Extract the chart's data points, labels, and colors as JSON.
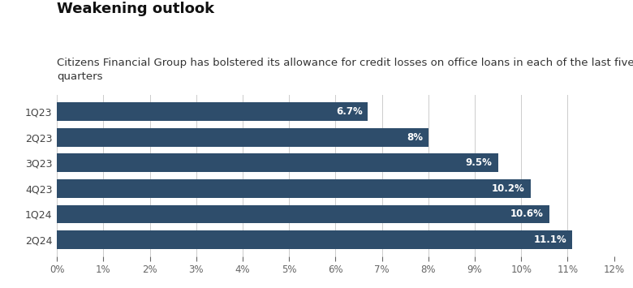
{
  "title": "Weakening outlook",
  "subtitle": "Citizens Financial Group has bolstered its allowance for credit losses on office loans in each of the last five\nquarters",
  "categories": [
    "1Q23",
    "2Q23",
    "3Q23",
    "4Q23",
    "1Q24",
    "2Q24"
  ],
  "values": [
    6.7,
    8.0,
    9.5,
    10.2,
    10.6,
    11.1
  ],
  "labels": [
    "6.7%",
    "8%",
    "9.5%",
    "10.2%",
    "10.6%",
    "11.1%"
  ],
  "bar_color": "#2E4D6B",
  "label_color": "#ffffff",
  "background_color": "#ffffff",
  "grid_color": "#cccccc",
  "ytick_color": "#444444",
  "xtick_color": "#666666",
  "title_color": "#111111",
  "subtitle_color": "#333333",
  "xlim": [
    0,
    12
  ],
  "xticks": [
    0,
    1,
    2,
    3,
    4,
    5,
    6,
    7,
    8,
    9,
    10,
    11,
    12
  ],
  "title_fontsize": 13,
  "subtitle_fontsize": 9.5,
  "label_fontsize": 8.5,
  "tick_fontsize": 8.5,
  "ytick_fontsize": 9,
  "bar_height": 0.72
}
